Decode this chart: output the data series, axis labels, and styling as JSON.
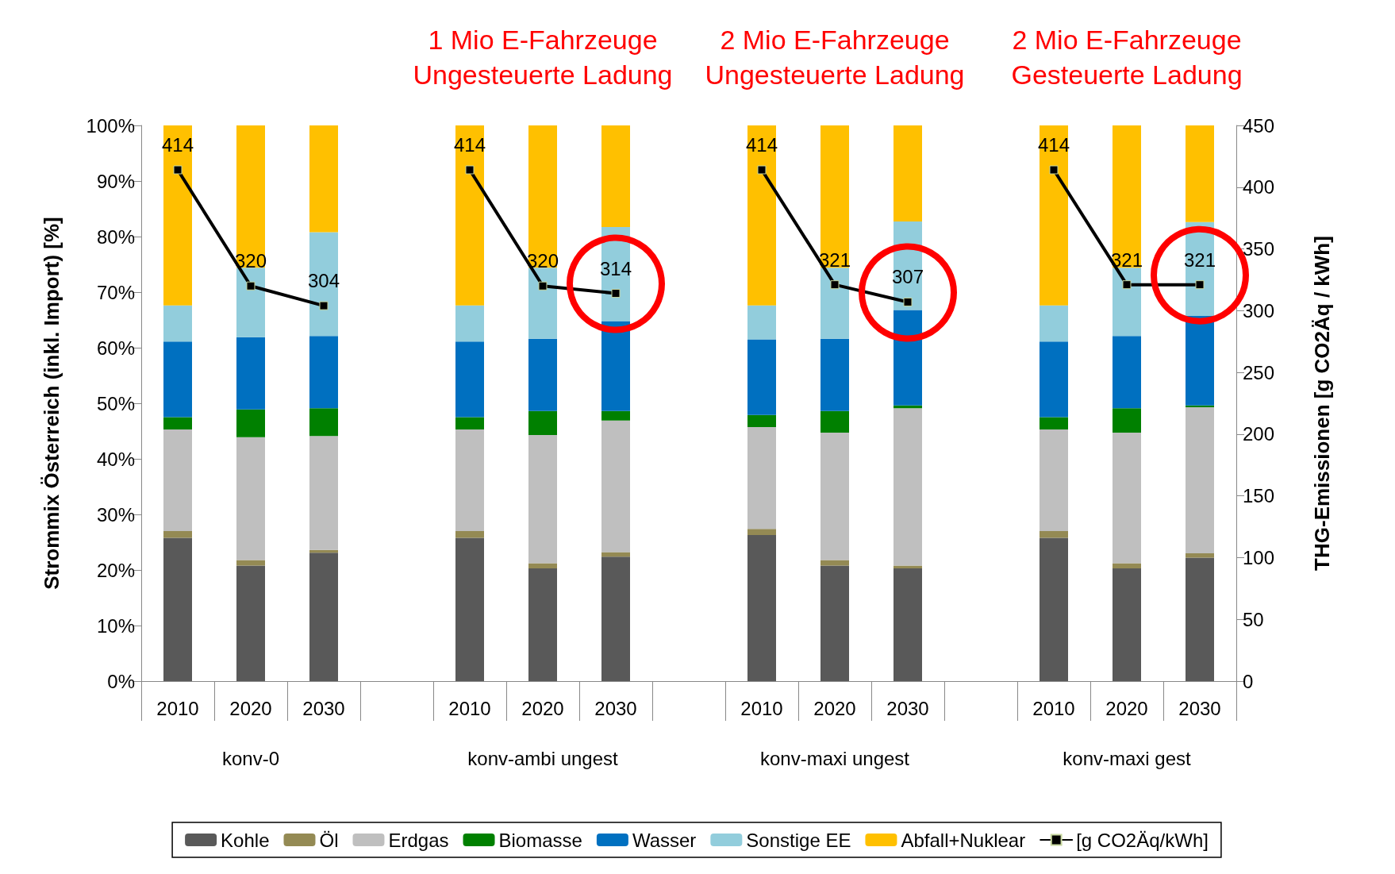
{
  "chart_data": {
    "type": "bar",
    "stacked": true,
    "ylabel": "Strommix Österreich (inkl. Import) [%]",
    "y2label": "THG-Emissionen [g CO2Äq / kWh]",
    "categories": [
      "2010",
      "2020",
      "2030",
      null,
      "2010",
      "2020",
      "2030",
      null,
      "2010",
      "2020",
      "2030",
      null,
      "2010",
      "2020",
      "2030"
    ],
    "series": [
      {
        "name": "Kohle",
        "color": "#595959",
        "values": [
          25.8,
          20.8,
          23.1,
          null,
          25.8,
          20.3,
          22.4,
          null,
          26.3,
          20.8,
          20.3,
          null,
          25.8,
          20.3,
          22.2
        ]
      },
      {
        "name": "Öl",
        "color": "#948a54",
        "values": [
          1.2,
          1.0,
          0.5,
          null,
          1.2,
          0.9,
          0.8,
          null,
          1.1,
          1.0,
          0.5,
          null,
          1.2,
          0.9,
          0.8
        ]
      },
      {
        "name": "Erdgas",
        "color": "#bfbfbf",
        "values": [
          18.3,
          22.1,
          20.5,
          null,
          18.3,
          23.1,
          23.7,
          null,
          18.3,
          22.9,
          28.3,
          null,
          18.3,
          23.5,
          26.3
        ]
      },
      {
        "name": "Biomasse",
        "color": "#008000",
        "values": [
          2.2,
          5.0,
          5.0,
          null,
          2.2,
          4.3,
          1.7,
          null,
          2.2,
          3.9,
          0.5,
          null,
          2.2,
          4.4,
          0.3
        ]
      },
      {
        "name": "Wasser",
        "color": "#0070c0",
        "values": [
          13.6,
          13.0,
          13.0,
          null,
          13.6,
          13.0,
          16.2,
          null,
          13.6,
          13.0,
          17.2,
          null,
          13.6,
          13.0,
          16.1
        ]
      },
      {
        "name": "Sonstige EE",
        "color": "#92cddc",
        "values": [
          6.5,
          12.5,
          18.7,
          null,
          6.5,
          12.8,
          16.9,
          null,
          6.1,
          12.8,
          15.9,
          null,
          6.5,
          12.3,
          16.9
        ]
      },
      {
        "name": "Abfall+Nuklear",
        "color": "#ffc000",
        "values": [
          32.4,
          25.6,
          19.2,
          null,
          32.4,
          25.6,
          18.3,
          null,
          32.4,
          25.6,
          17.3,
          null,
          32.4,
          25.6,
          17.4
        ]
      },
      {
        "name": "[g CO2Äq/kWh]",
        "type": "line",
        "axis": "y2",
        "color": "#000000",
        "marker": "square",
        "values": [
          414,
          320,
          304,
          null,
          414,
          320,
          314,
          null,
          414,
          321,
          307,
          null,
          414,
          321,
          321
        ],
        "value_labels": [
          "414",
          "320",
          "304",
          null,
          "414",
          "320",
          "314",
          null,
          "414",
          "321",
          "307",
          null,
          "414",
          "321",
          "321"
        ]
      }
    ],
    "ylim": [
      0,
      100
    ],
    "yticks": [
      {
        "value": 0,
        "label": "0%"
      },
      {
        "value": 10,
        "label": "10%"
      },
      {
        "value": 20,
        "label": "20%"
      },
      {
        "value": 30,
        "label": "30%"
      },
      {
        "value": 40,
        "label": "40%"
      },
      {
        "value": 50,
        "label": "50%"
      },
      {
        "value": 60,
        "label": "60%"
      },
      {
        "value": 70,
        "label": "70%"
      },
      {
        "value": 80,
        "label": "80%"
      },
      {
        "value": 90,
        "label": "90%"
      },
      {
        "value": 100,
        "label": "100%"
      }
    ],
    "y2lim": [
      0,
      450
    ],
    "y2ticks": [
      0,
      50,
      100,
      150,
      200,
      250,
      300,
      350,
      400,
      450
    ],
    "annotations": [
      "konv-0",
      "konv-ambi ungest",
      "konv-maxi ungest",
      "konv-maxi gest",
      "1 Mio E-Fahrzeuge\nUngesteuerte Ladung",
      "2 Mio E-Fahrzeuge\nUngesteuerte Ladung",
      "2 Mio E-Fahrzeuge\nGesteuerte Ladung"
    ],
    "legend": "bottom",
    "grid": false
  }
}
